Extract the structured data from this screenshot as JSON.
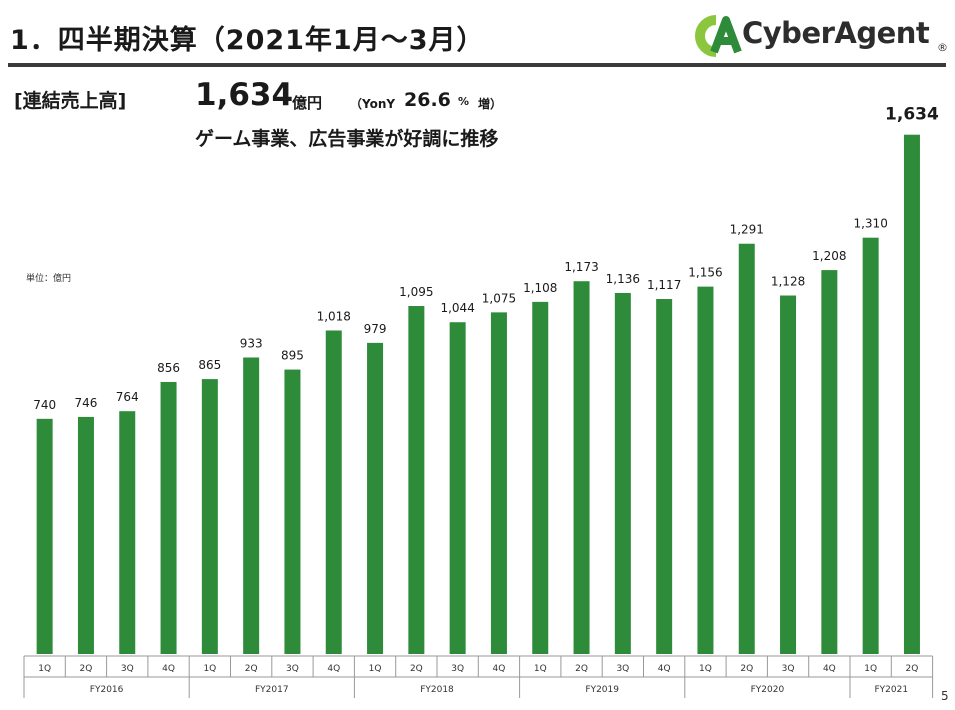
{
  "header": {
    "title": "1．四半期決算（2021年1月〜3月）",
    "logo_text": "CyberAgent",
    "logo_dot": "®"
  },
  "summary": {
    "label": "[連結売上高]",
    "value": "1,634",
    "unit": "億円",
    "yony_label": "（YonY",
    "yony_value": "26.6",
    "yony_pct": "%",
    "yony_suffix": "増）",
    "description": "ゲーム事業、広告事業が好調に推移"
  },
  "unit_note": "単位：億円",
  "page_number": "5",
  "colors": {
    "bar": "#2e8b3a",
    "logo_green": "#8cc63f",
    "logo_dark": "#2e8b3a"
  },
  "chart_data": {
    "type": "bar",
    "categories": [
      "1Q",
      "2Q",
      "3Q",
      "4Q",
      "1Q",
      "2Q",
      "3Q",
      "4Q",
      "1Q",
      "2Q",
      "3Q",
      "4Q",
      "1Q",
      "2Q",
      "3Q",
      "4Q",
      "1Q",
      "2Q",
      "3Q",
      "4Q",
      "1Q",
      "2Q"
    ],
    "values": [
      740,
      746,
      764,
      856,
      865,
      933,
      895,
      1018,
      979,
      1095,
      1044,
      1075,
      1108,
      1173,
      1136,
      1117,
      1156,
      1291,
      1128,
      1208,
      1310,
      1634
    ],
    "value_labels": [
      "740",
      "746",
      "764",
      "856",
      "865",
      "933",
      "895",
      "1,018",
      "979",
      "1,095",
      "1,044",
      "1,075",
      "1,108",
      "1,173",
      "1,136",
      "1,117",
      "1,156",
      "1,291",
      "1,128",
      "1,208",
      "1,310",
      "1,634"
    ],
    "fiscal_years": [
      {
        "label": "FY2016",
        "count": 4
      },
      {
        "label": "FY2017",
        "count": 4
      },
      {
        "label": "FY2018",
        "count": 4
      },
      {
        "label": "FY2019",
        "count": 4
      },
      {
        "label": "FY2020",
        "count": 4
      },
      {
        "label": "FY2021",
        "count": 2
      }
    ],
    "ylim": [
      0,
      1634
    ],
    "grid": false,
    "highlight_last": true
  }
}
